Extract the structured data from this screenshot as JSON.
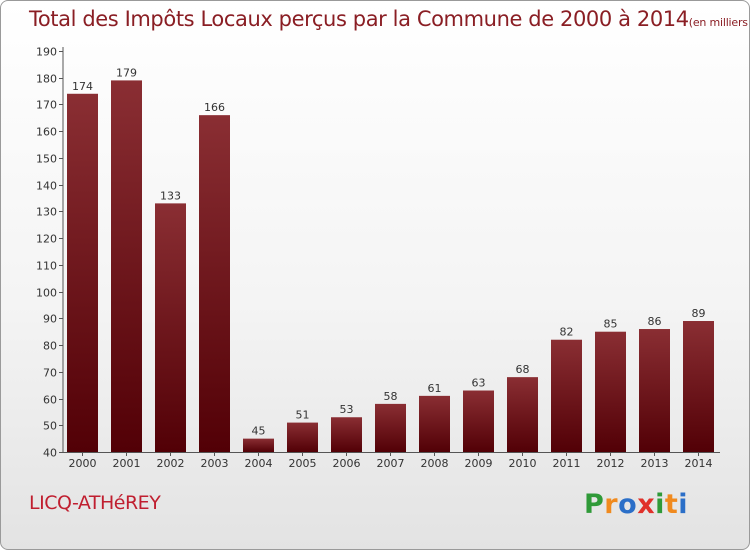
{
  "chart_data": {
    "type": "bar",
    "title": "Total des Impôts Locaux perçus par la Commune de 2000 à 2014",
    "unit": "(en milliers d'€)",
    "categories": [
      "2000",
      "2001",
      "2002",
      "2003",
      "2004",
      "2005",
      "2006",
      "2007",
      "2008",
      "2009",
      "2010",
      "2011",
      "2012",
      "2013",
      "2014"
    ],
    "values": [
      174,
      179,
      133,
      166,
      45,
      51,
      53,
      58,
      61,
      63,
      68,
      82,
      85,
      86,
      89
    ],
    "ylim": [
      40,
      190
    ],
    "yticks": [
      40,
      50,
      60,
      70,
      80,
      90,
      100,
      110,
      120,
      130,
      140,
      150,
      160,
      170,
      180,
      190
    ],
    "xlabel": "",
    "ylabel": "",
    "grid": false
  },
  "commune": "LICQ-ATHéREY",
  "logo": {
    "letters": [
      "P",
      "r",
      "o",
      "x",
      "i",
      "t",
      "i"
    ]
  },
  "colors": {
    "bar_top": "#8a2e33",
    "bar_bottom": "#520006",
    "title": "#8a1e24",
    "commune": "#c01f30",
    "logo": [
      "#2f9a38",
      "#f08a1e",
      "#2b6fc8",
      "#e0312a",
      "#2f9a38",
      "#f08a1e",
      "#2b6fc8"
    ]
  }
}
